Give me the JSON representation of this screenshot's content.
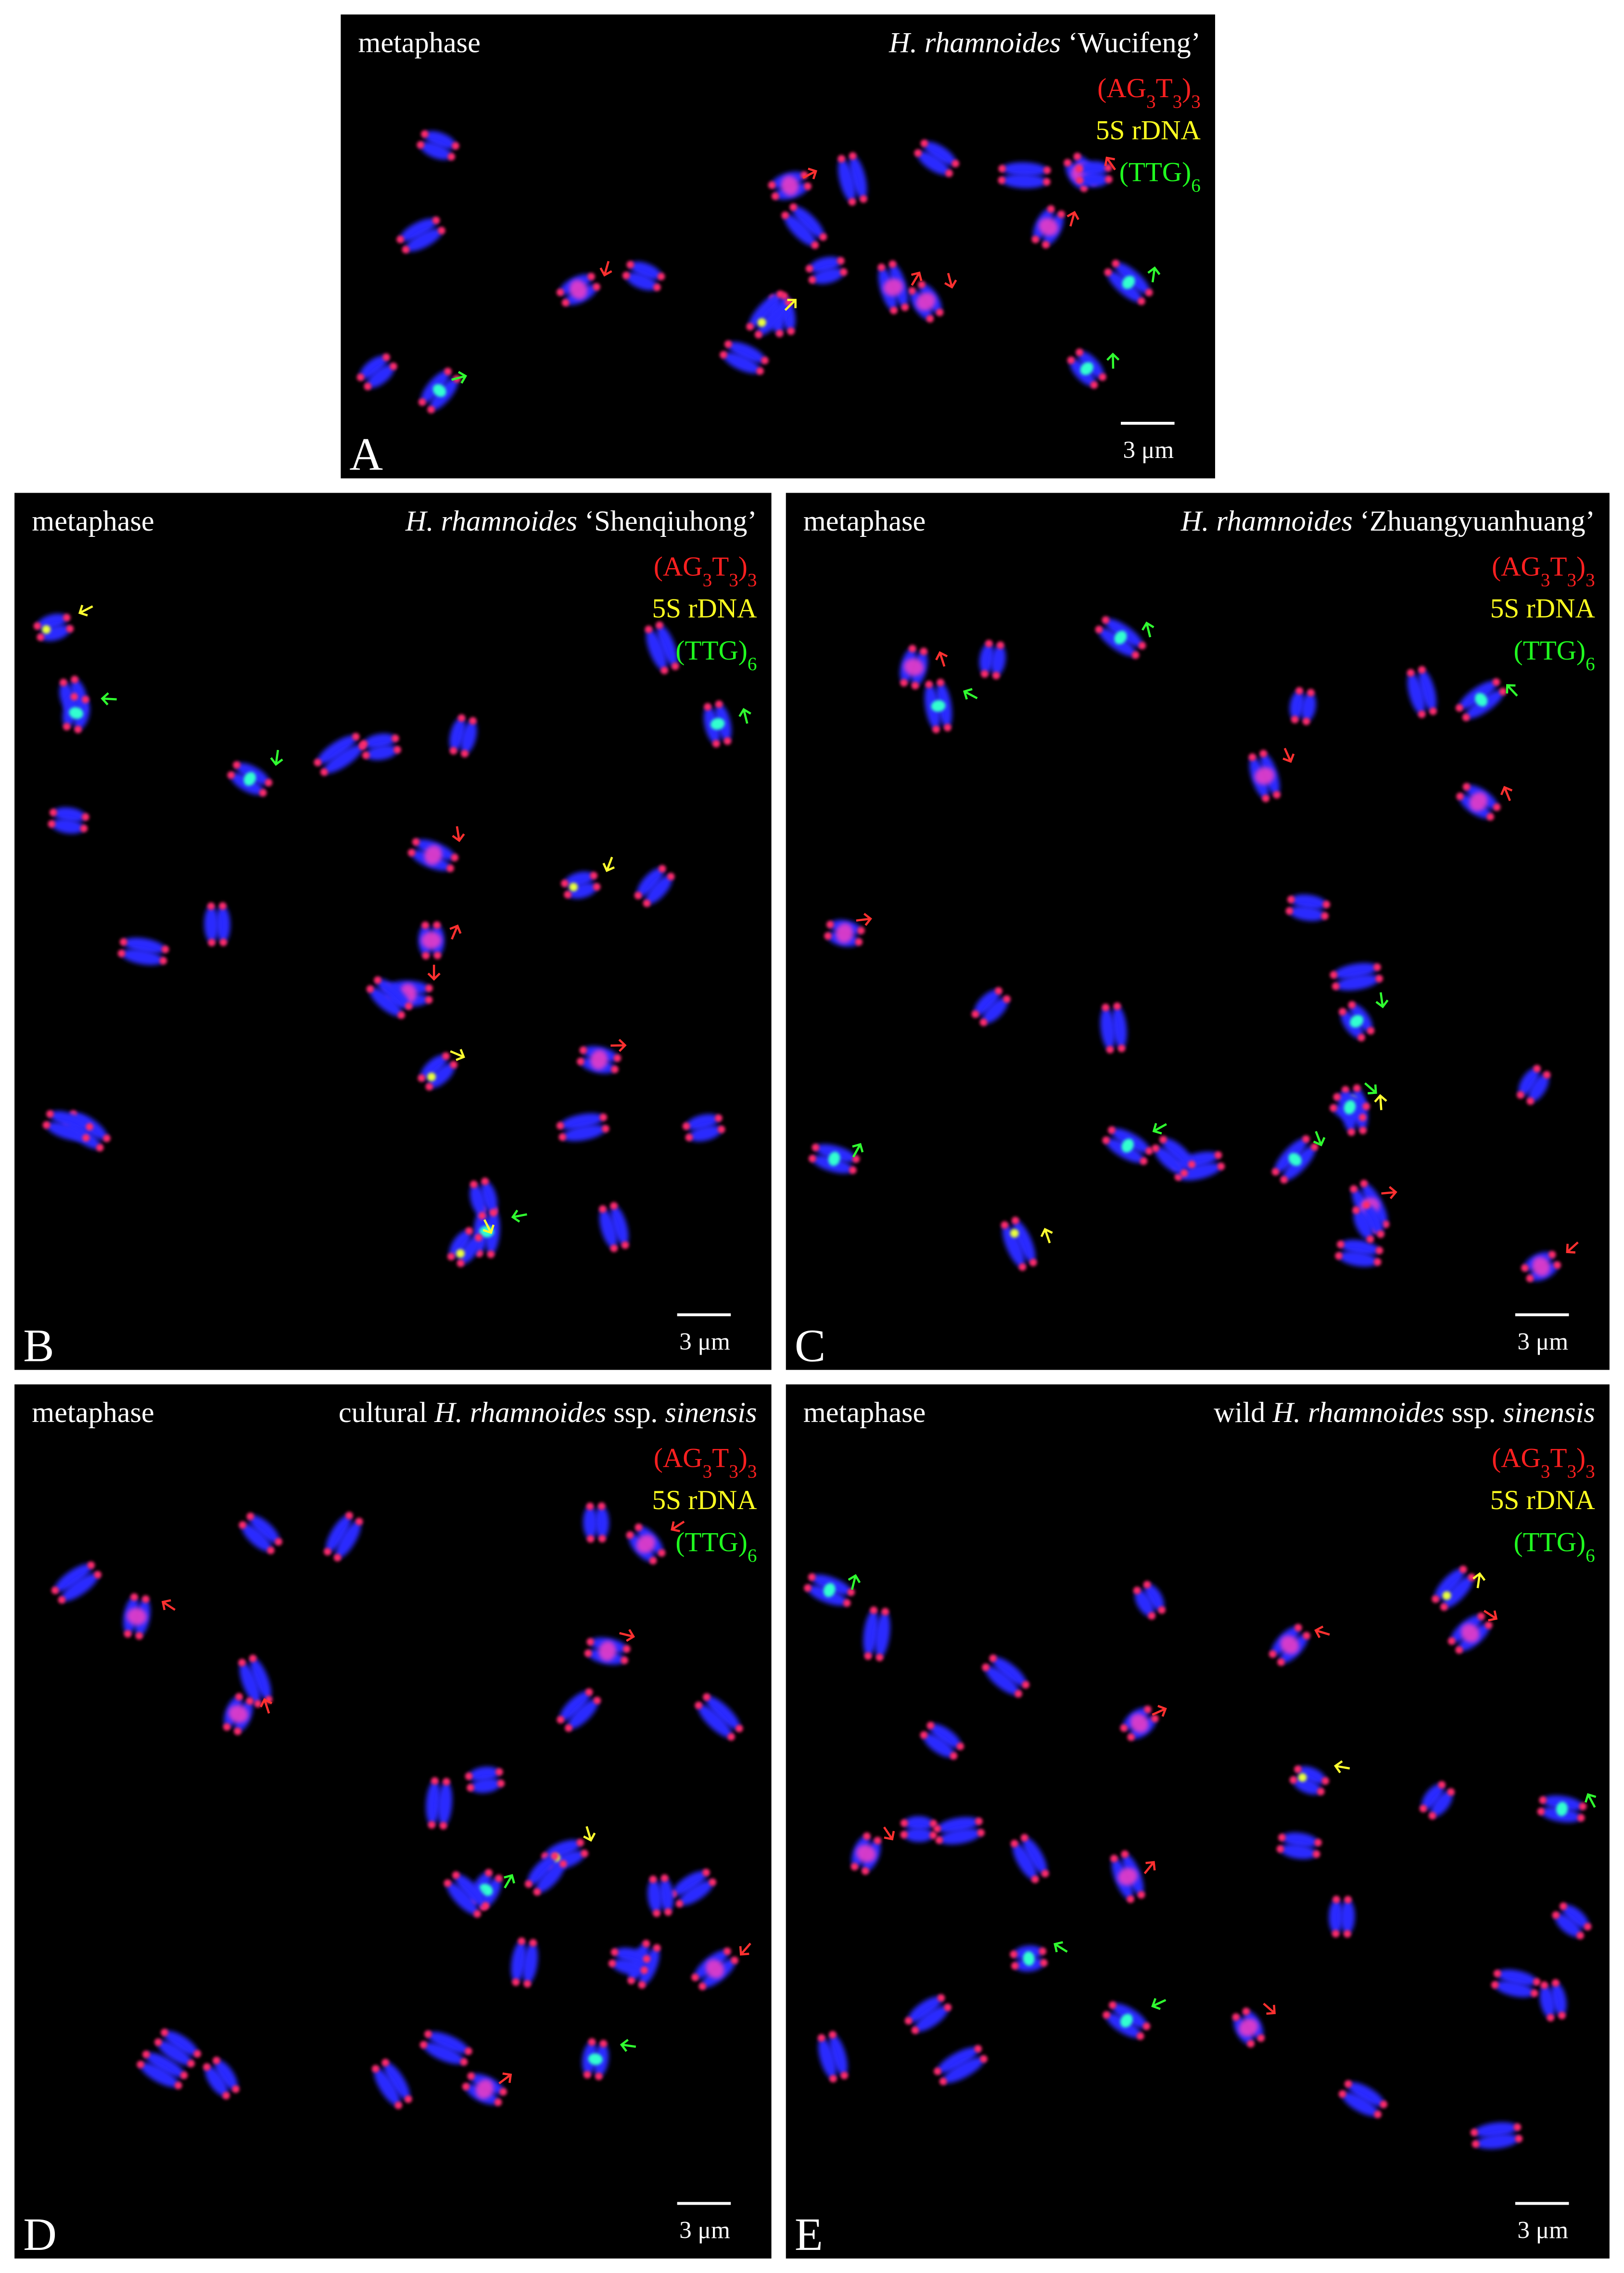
{
  "panels": [
    {
      "letter": "A",
      "stage": "metaphase",
      "title": [
        {
          "text": "H. rhamnoides",
          "italic": true
        },
        {
          "text": " ‘Wucifeng’"
        }
      ],
      "legend": [
        {
          "color": "#ff2020",
          "segments": [
            {
              "text": "(AG"
            },
            {
              "text": "3",
              "sub": true
            },
            {
              "text": "T"
            },
            {
              "text": "3",
              "sub": true
            },
            {
              "text": ")"
            },
            {
              "text": "3",
              "sub": true
            }
          ]
        },
        {
          "color": "#ffff20",
          "segments": [
            {
              "text": "5S rDNA"
            }
          ]
        },
        {
          "color": "#20ff20",
          "segments": [
            {
              "text": "(TTG)"
            },
            {
              "text": "6",
              "sub": true
            }
          ]
        }
      ],
      "scale": "3 μm"
    },
    {
      "letter": "B",
      "stage": "metaphase",
      "title": [
        {
          "text": "H. rhamnoides",
          "italic": true
        },
        {
          "text": " ‘Shenqiuhong’"
        }
      ],
      "legend": [
        {
          "color": "#ff2020",
          "segments": [
            {
              "text": "(AG"
            },
            {
              "text": "3",
              "sub": true
            },
            {
              "text": "T"
            },
            {
              "text": "3",
              "sub": true
            },
            {
              "text": ")"
            },
            {
              "text": "3",
              "sub": true
            }
          ]
        },
        {
          "color": "#ffff20",
          "segments": [
            {
              "text": "5S rDNA"
            }
          ]
        },
        {
          "color": "#20ff20",
          "segments": [
            {
              "text": "(TTG)"
            },
            {
              "text": "6",
              "sub": true
            }
          ]
        }
      ],
      "scale": "3 μm"
    },
    {
      "letter": "C",
      "stage": "metaphase",
      "title": [
        {
          "text": "H. rhamnoides",
          "italic": true
        },
        {
          "text": " ‘Zhuangyuanhuang’"
        }
      ],
      "legend": [
        {
          "color": "#ff2020",
          "segments": [
            {
              "text": "(AG"
            },
            {
              "text": "3",
              "sub": true
            },
            {
              "text": "T"
            },
            {
              "text": "3",
              "sub": true
            },
            {
              "text": ")"
            },
            {
              "text": "3",
              "sub": true
            }
          ]
        },
        {
          "color": "#ffff20",
          "segments": [
            {
              "text": "5S rDNA"
            }
          ]
        },
        {
          "color": "#20ff20",
          "segments": [
            {
              "text": "(TTG)"
            },
            {
              "text": "6",
              "sub": true
            }
          ]
        }
      ],
      "scale": "3 μm"
    },
    {
      "letter": "D",
      "stage": "metaphase",
      "title": [
        {
          "text": "cultural "
        },
        {
          "text": "H. rhamnoides",
          "italic": true
        },
        {
          "text": " ssp. "
        },
        {
          "text": "sinensis",
          "italic": true
        }
      ],
      "legend": [
        {
          "color": "#ff2020",
          "segments": [
            {
              "text": "(AG"
            },
            {
              "text": "3",
              "sub": true
            },
            {
              "text": "T"
            },
            {
              "text": "3",
              "sub": true
            },
            {
              "text": ")"
            },
            {
              "text": "3",
              "sub": true
            }
          ]
        },
        {
          "color": "#ffff20",
          "segments": [
            {
              "text": "5S rDNA"
            }
          ]
        },
        {
          "color": "#20ff20",
          "segments": [
            {
              "text": "(TTG)"
            },
            {
              "text": "6",
              "sub": true
            }
          ]
        }
      ],
      "scale": "3 μm"
    },
    {
      "letter": "E",
      "stage": "metaphase",
      "title": [
        {
          "text": "wild "
        },
        {
          "text": "H. rhamnoides",
          "italic": true
        },
        {
          "text": " ssp. "
        },
        {
          "text": "sinensis",
          "italic": true
        }
      ],
      "legend": [
        {
          "color": "#ff2020",
          "segments": [
            {
              "text": "(AG"
            },
            {
              "text": "3",
              "sub": true
            },
            {
              "text": "T"
            },
            {
              "text": "3",
              "sub": true
            },
            {
              "text": ")"
            },
            {
              "text": "3",
              "sub": true
            }
          ]
        },
        {
          "color": "#ffff20",
          "segments": [
            {
              "text": "5S rDNA"
            }
          ]
        },
        {
          "color": "#20ff20",
          "segments": [
            {
              "text": "(TTG)"
            },
            {
              "text": "6",
              "sub": true
            }
          ]
        }
      ],
      "scale": "3 μm"
    }
  ]
}
